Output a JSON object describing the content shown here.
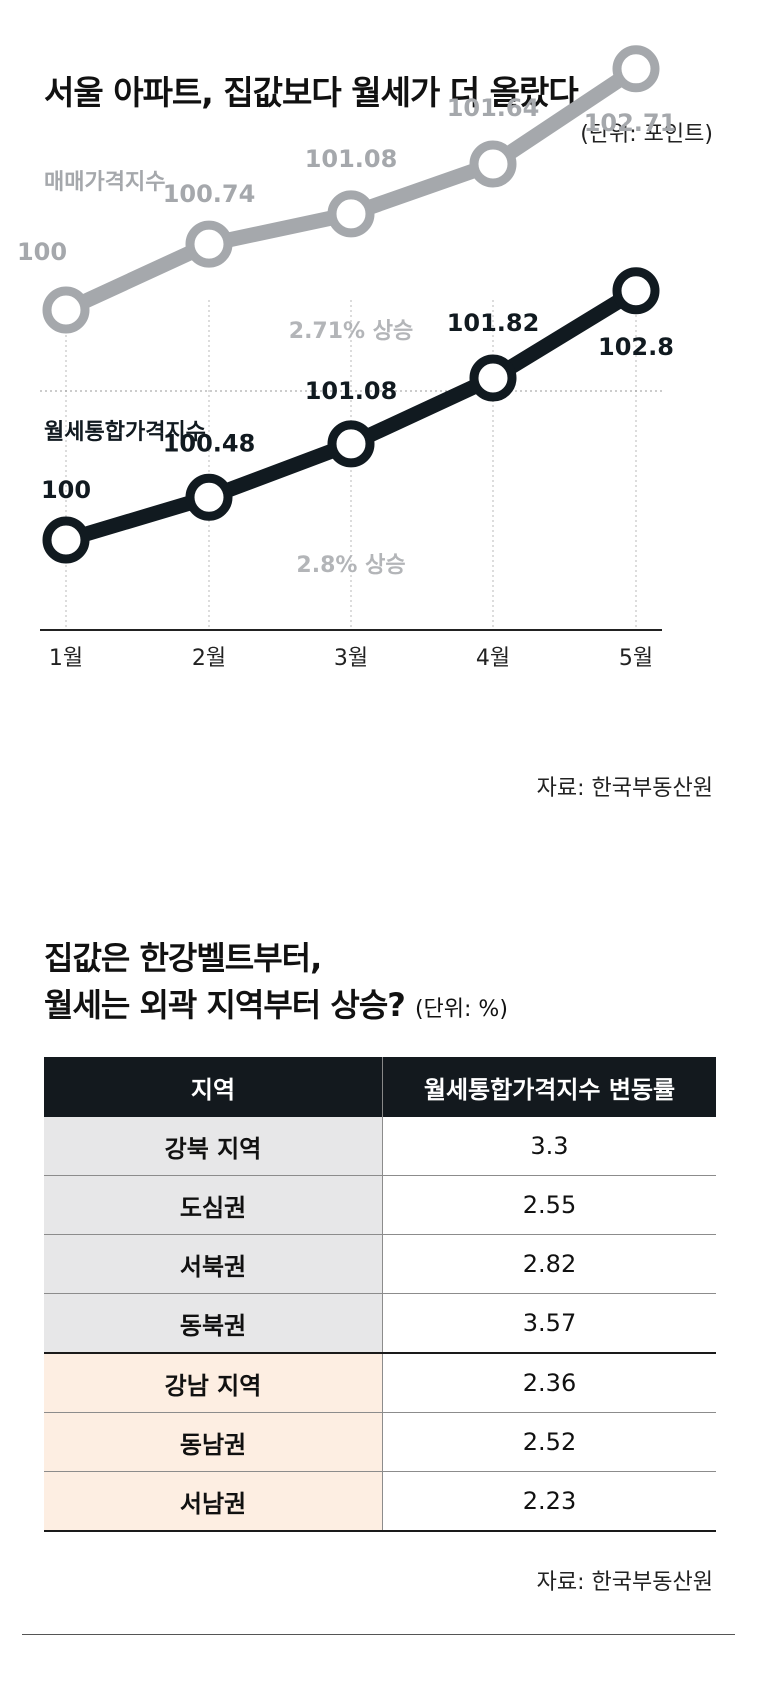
{
  "title": "서울 아파트, 집값보다 월세가 더 올랐다",
  "unit": "(단위: 포인트)",
  "chart_data": {
    "type": "line",
    "categories": [
      "1월",
      "2월",
      "3월",
      "4월",
      "5월"
    ],
    "series": [
      {
        "name": "매매가격지수",
        "values": [
          100,
          100.74,
          101.08,
          101.64,
          102.71
        ],
        "labels": [
          "100",
          "100.74",
          "101.08",
          "101.64",
          "102.71"
        ],
        "color": "#a5a8ac",
        "note": "2.71% 상승"
      },
      {
        "name": "월세통합가격지수",
        "values": [
          100,
          100.48,
          101.08,
          101.82,
          102.8
        ],
        "labels": [
          "100",
          "100.48",
          "101.08",
          "101.82",
          "102.8"
        ],
        "color": "#111a20",
        "note": "2.8% 상승"
      }
    ]
  },
  "source1": "자료: 한국부동산원",
  "table": {
    "title_line1": "집값은 한강벨트부터,",
    "title_line2": "월세는 외곽 지역부터 상승?",
    "unit": "(단위: %)",
    "headers": [
      "지역",
      "월세통합가격지수 변동률"
    ],
    "rows": [
      {
        "region": "강북 지역",
        "value": "3.3",
        "group": "north"
      },
      {
        "region": "도심권",
        "value": "2.55",
        "group": "north"
      },
      {
        "region": "서북권",
        "value": "2.82",
        "group": "north"
      },
      {
        "region": "동북권",
        "value": "3.57",
        "group": "north"
      },
      {
        "region": "강남 지역",
        "value": "2.36",
        "group": "south"
      },
      {
        "region": "동남권",
        "value": "2.52",
        "group": "south"
      },
      {
        "region": "서남권",
        "value": "2.23",
        "group": "south"
      }
    ]
  },
  "source2": "자료: 한국부동산원"
}
